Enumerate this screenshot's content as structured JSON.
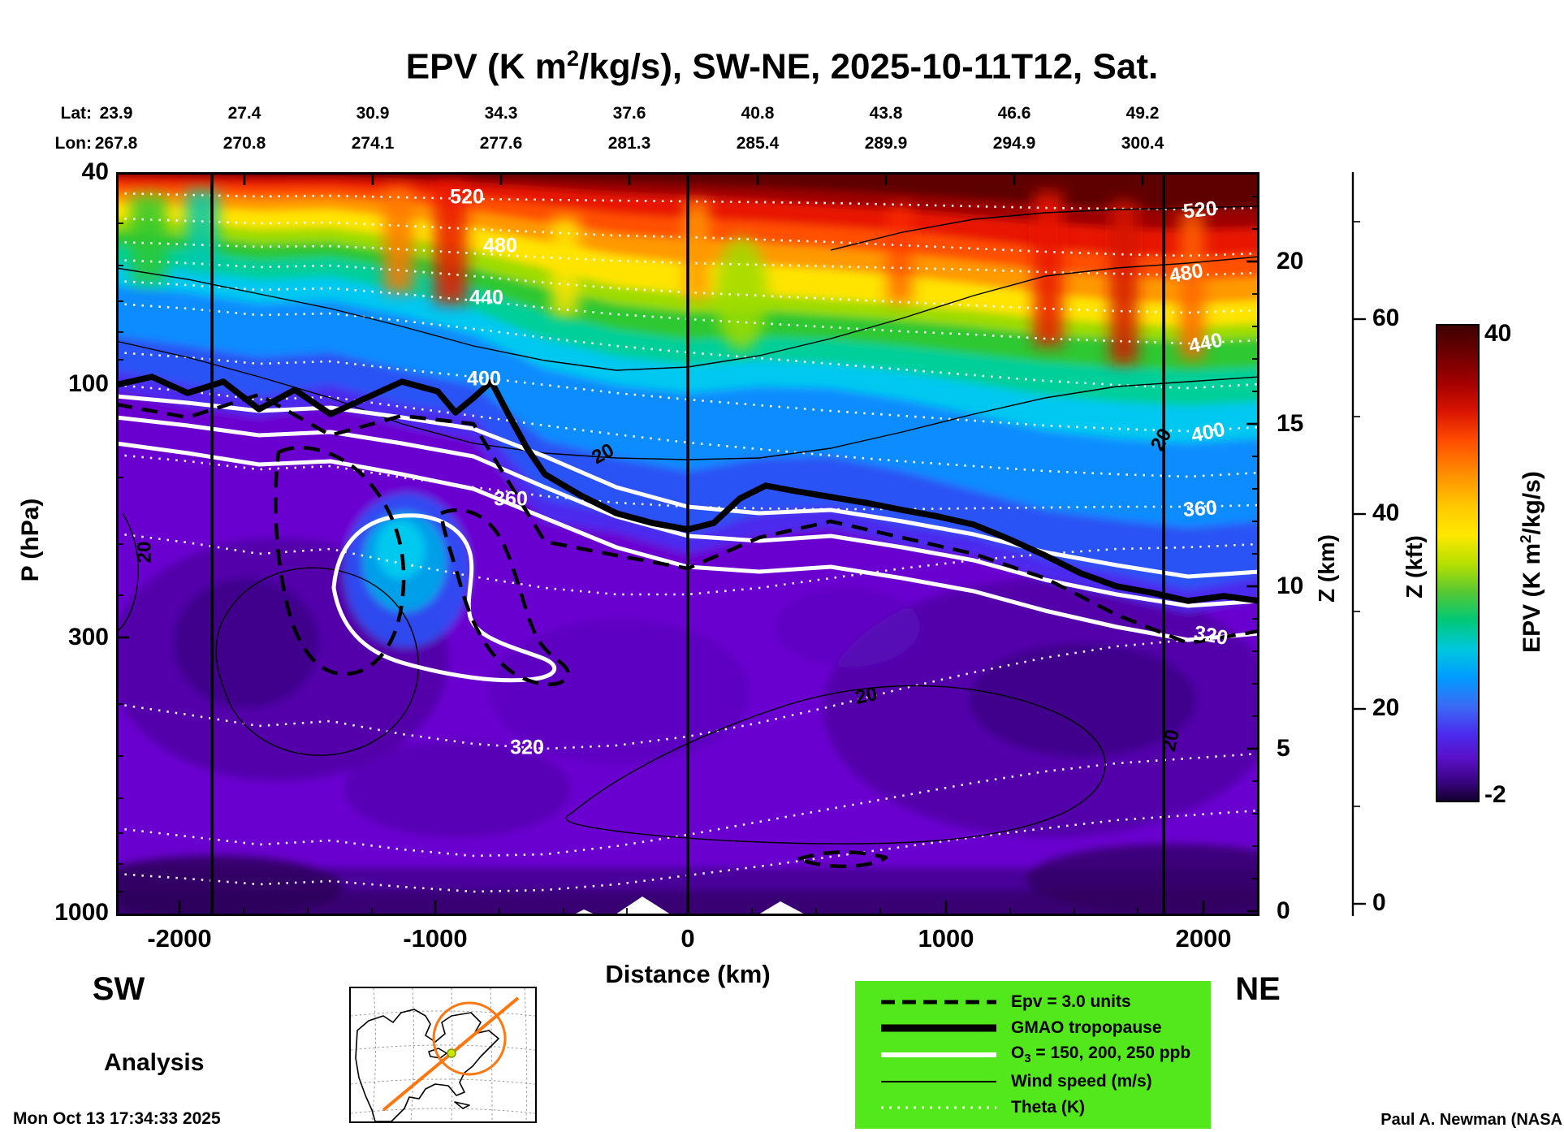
{
  "title": {
    "pre": "EPV (K m",
    "sup": "2",
    "post": "/kg/s), SW-NE, 2025-10-11T12, Sat."
  },
  "top_axis": {
    "lat_label": "Lat:",
    "lon_label": "Lon:",
    "lat": [
      "23.9",
      "27.4",
      "30.9",
      "34.3",
      "37.6",
      "40.8",
      "43.8",
      "46.6",
      "49.2"
    ],
    "lon": [
      "267.8",
      "270.8",
      "274.1",
      "277.6",
      "281.3",
      "285.4",
      "289.9",
      "294.9",
      "300.4"
    ]
  },
  "axes": {
    "p_label": "P (hPa)",
    "p_ticks": [
      "40",
      "100",
      "300",
      "1000"
    ],
    "x_label": "Distance (km)",
    "x_ticks": [
      "-2000",
      "-1000",
      "0",
      "1000",
      "2000"
    ],
    "zkm_label": "Z (km)",
    "zkm_ticks": [
      "20",
      "15",
      "10",
      "5",
      "0"
    ],
    "zkft_label": "Z (kft)",
    "zkft_ticks": [
      "60",
      "40",
      "20",
      "0"
    ]
  },
  "colorbar": {
    "max": "40",
    "min": "-2",
    "label_pre": "EPV (K m",
    "label_sup": "2",
    "label_post": "/kg/s)"
  },
  "endpoints": {
    "sw": "SW",
    "ne": "NE"
  },
  "analysis_label": "Analysis",
  "legend": {
    "items": [
      {
        "label": "Epv = 3.0 units"
      },
      {
        "label": "GMAO tropopause"
      },
      {
        "pre": "O",
        "sub": "3",
        "post": " = 150, 200, 250 ppb"
      },
      {
        "label": "Wind speed (m/s)"
      },
      {
        "label": "Theta (K)"
      }
    ]
  },
  "plot_labels": {
    "t520": "520",
    "t480": "480",
    "t440": "440",
    "t400": "400",
    "t360": "360",
    "t320": "320",
    "w20": "20"
  },
  "footer": {
    "left": "Mon Oct 13 17:34:33 2025",
    "right": "Paul A. Newman (NASA"
  },
  "chart_data": {
    "type": "heatmap",
    "title": "EPV (K m2/kg/s), SW-NE, 2025-10-11T12, Sat.",
    "x_axis": {
      "label": "Distance (km)",
      "ticks": [
        -2000,
        -1000,
        0,
        1000,
        2000
      ],
      "range": [
        -2250,
        2220
      ]
    },
    "y_axis": {
      "label": "P (hPa)",
      "scale": "log",
      "ticks": [
        40,
        100,
        300,
        1000
      ],
      "range": [
        40,
        1000
      ]
    },
    "y2_axis": {
      "label": "Z (km)",
      "ticks": [
        0,
        5,
        10,
        15,
        20
      ]
    },
    "y3_axis": {
      "label": "Z (kft)",
      "ticks": [
        0,
        20,
        40,
        60
      ]
    },
    "track": {
      "lat": [
        23.9,
        27.4,
        30.9,
        34.3,
        37.6,
        40.8,
        43.8,
        46.6,
        49.2
      ],
      "lon": [
        267.8,
        270.8,
        274.1,
        277.6,
        281.3,
        285.4,
        289.9,
        294.9,
        300.4
      ]
    },
    "colorbar": {
      "label": "EPV (K m2/kg/s)",
      "min": -2,
      "max": 40
    },
    "overlays": [
      {
        "name": "Epv",
        "level_units": 3.0,
        "style": "dashed-black"
      },
      {
        "name": "GMAO tropopause",
        "style": "thick-black"
      },
      {
        "name": "O3",
        "levels_ppb": [
          150,
          200,
          250
        ],
        "style": "thick-white"
      },
      {
        "name": "Wind speed (m/s)",
        "labeled_contour": 20,
        "style": "thin-black"
      },
      {
        "name": "Theta (K)",
        "labeled_contours": [
          320,
          360,
          400,
          440,
          480,
          520
        ],
        "style": "dotted-white"
      }
    ],
    "waypoint_lines_km": [
      -1857,
      0,
      1857
    ],
    "field_summary": "EPV near 0 (purple) in the troposphere; increases through blue/cyan/green/yellow above the tropopause to ~40 (dark red) near 40 hPa; tropopause descends from ~100 hPa at the SW end to ~250-300 hPa at the NE end"
  }
}
